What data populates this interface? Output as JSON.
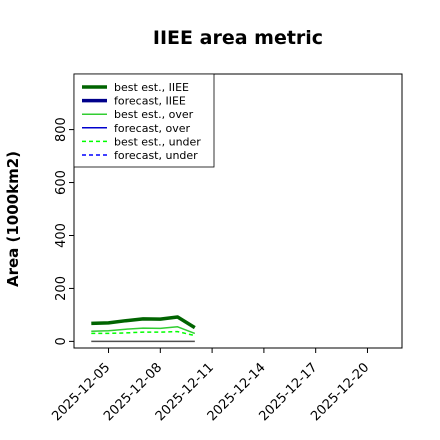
{
  "chart_data": {
    "type": "line",
    "title": "IIEE area metric",
    "xlabel": "",
    "ylabel": "Area (1000km2)",
    "ylim": [
      -25,
      1010
    ],
    "xlim": [
      "2025-12-03",
      "2025-12-22"
    ],
    "yticks": [
      0,
      200,
      400,
      600,
      800
    ],
    "ytick_labels": [
      "0",
      "200",
      "400",
      "600",
      "800"
    ],
    "xticks": [
      "2025-12-05",
      "2025-12-08",
      "2025-12-11",
      "2025-12-14",
      "2025-12-17",
      "2025-12-20"
    ],
    "xtick_labels": [
      "2025-12-05",
      "2025-12-08",
      "2025-12-11",
      "2025-12-14",
      "2025-12-17",
      "2025-12-20"
    ],
    "highlight_tick": "2025-12-11",
    "highlight_color": "#228b22",
    "grid": false,
    "legend_position": "top-left",
    "series": [
      {
        "name": "best est., IIEE",
        "color": "#006400",
        "style": "solid",
        "width": 3.5,
        "x": [
          "2025-12-04",
          "2025-12-05",
          "2025-12-06",
          "2025-12-07",
          "2025-12-08",
          "2025-12-09",
          "2025-12-10"
        ],
        "y": [
          68,
          70,
          78,
          85,
          84,
          92,
          52
        ]
      },
      {
        "name": "forecast, IIEE",
        "color": "#00008b",
        "style": "solid",
        "width": 3.5,
        "x": [],
        "y": []
      },
      {
        "name": "best est., over",
        "color": "#32cd32",
        "style": "solid",
        "width": 1.5,
        "x": [
          "2025-12-04",
          "2025-12-05",
          "2025-12-06",
          "2025-12-07",
          "2025-12-08",
          "2025-12-09",
          "2025-12-10"
        ],
        "y": [
          38,
          40,
          46,
          50,
          49,
          55,
          30
        ]
      },
      {
        "name": "forecast, over",
        "color": "#0000cd",
        "style": "solid",
        "width": 1.5,
        "x": [],
        "y": []
      },
      {
        "name": "best est., under",
        "color": "#00ff00",
        "style": "dashed",
        "width": 1.5,
        "x": [
          "2025-12-04",
          "2025-12-05",
          "2025-12-06",
          "2025-12-07",
          "2025-12-08",
          "2025-12-09",
          "2025-12-10"
        ],
        "y": [
          30,
          30,
          32,
          35,
          35,
          37,
          22
        ]
      },
      {
        "name": "forecast, under",
        "color": "#0000ff",
        "style": "dashed",
        "width": 1.5,
        "x": [],
        "y": []
      }
    ],
    "zero_line": {
      "color": "#505050",
      "x": [
        "2025-12-04",
        "2025-12-10"
      ],
      "y": [
        0,
        0
      ]
    }
  }
}
